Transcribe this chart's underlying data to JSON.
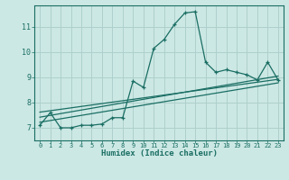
{
  "xlabel": "Humidex (Indice chaleur)",
  "bg_color": "#cce8e4",
  "grid_color": "#aed0cc",
  "line_color": "#1a6e64",
  "xlim": [
    -0.5,
    23.5
  ],
  "ylim": [
    6.5,
    11.85
  ],
  "yticks": [
    7,
    8,
    9,
    10,
    11
  ],
  "xticks": [
    0,
    1,
    2,
    3,
    4,
    5,
    6,
    7,
    8,
    9,
    10,
    11,
    12,
    13,
    14,
    15,
    16,
    17,
    18,
    19,
    20,
    21,
    22,
    23
  ],
  "main_x": [
    0,
    1,
    2,
    3,
    4,
    5,
    6,
    7,
    8,
    9,
    10,
    11,
    12,
    13,
    14,
    15,
    16,
    17,
    18,
    19,
    20,
    21,
    22,
    23
  ],
  "main_y": [
    7.1,
    7.6,
    7.0,
    7.0,
    7.1,
    7.1,
    7.15,
    7.4,
    7.4,
    8.85,
    8.6,
    10.15,
    10.5,
    11.1,
    11.55,
    11.6,
    9.6,
    9.2,
    9.3,
    9.2,
    9.1,
    8.9,
    9.6,
    8.9
  ],
  "line1_x": [
    0,
    23
  ],
  "line1_y": [
    7.62,
    8.92
  ],
  "line2_x": [
    0,
    23
  ],
  "line2_y": [
    7.42,
    9.05
  ],
  "line3_x": [
    0,
    23
  ],
  "line3_y": [
    7.22,
    8.78
  ]
}
